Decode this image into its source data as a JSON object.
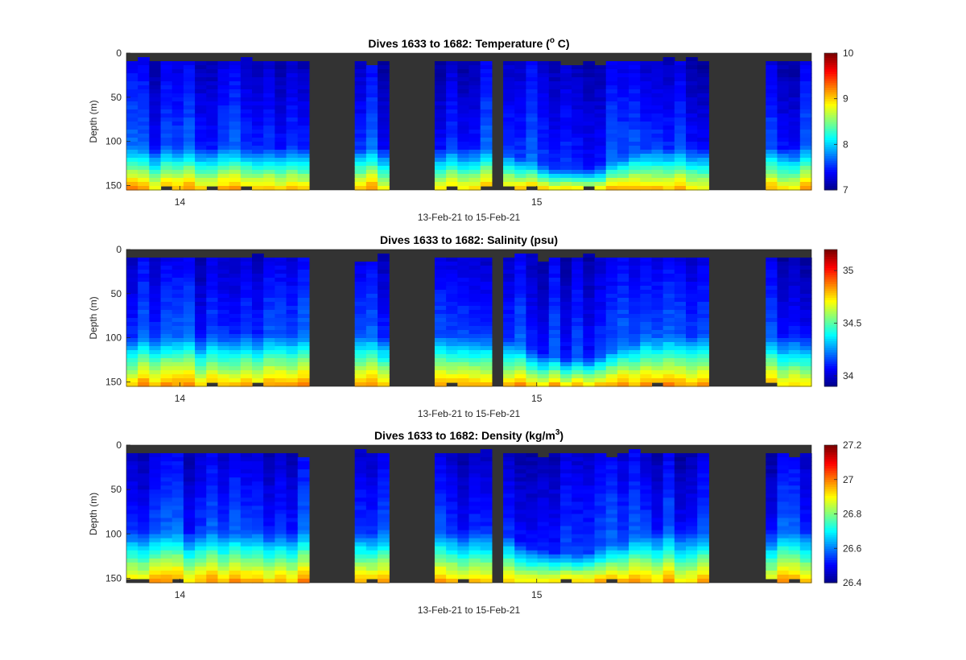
{
  "colormap": [
    "#00008f",
    "#0000ff",
    "#0080ff",
    "#00ffff",
    "#80ff80",
    "#ffff00",
    "#ff8000",
    "#ff0000",
    "#800000"
  ],
  "nodata_color": "#333333",
  "x_caption": "13-Feb-21 to 15-Feb-21",
  "chart_data": [
    {
      "type": "heatmap",
      "title_main": "Dives 1633 to 1682: Temperature (",
      "title_sup": "o",
      "title_end": " C)",
      "ylabel": "Depth (m)",
      "xlabel": "13-Feb-21 to 15-Feb-21",
      "x_ticks": [
        {
          "value": 14,
          "label": "14"
        },
        {
          "value": 15,
          "label": "15"
        }
      ],
      "xlim": [
        13.85,
        15.77
      ],
      "y_ticks": [
        "0",
        "50",
        "100",
        "150"
      ],
      "ylim": [
        0,
        155
      ],
      "y_reversed": true,
      "clim": [
        7,
        10
      ],
      "colorbar_ticks": [
        "7",
        "8",
        "9",
        "10"
      ],
      "surface_mean": 7.15,
      "thermocline_top_m": 105,
      "bottom_max": 8.9,
      "grid": false
    },
    {
      "type": "heatmap",
      "title_main": "Dives 1633 to 1682: Salinity (psu)",
      "title_sup": "",
      "title_end": "",
      "ylabel": "Depth (m)",
      "xlabel": "13-Feb-21 to 15-Feb-21",
      "x_ticks": [
        {
          "value": 14,
          "label": "14"
        },
        {
          "value": 15,
          "label": "15"
        }
      ],
      "xlim": [
        13.85,
        15.77
      ],
      "y_ticks": [
        "0",
        "50",
        "100",
        "150"
      ],
      "ylim": [
        0,
        155
      ],
      "y_reversed": true,
      "clim": [
        33.9,
        35.2
      ],
      "colorbar_ticks": [
        "34",
        "34.5",
        "35"
      ],
      "surface_mean": 33.99,
      "halocline_top_m": 95,
      "bottom_max": 34.8,
      "grid": false
    },
    {
      "type": "heatmap",
      "title_main": "Dives 1633 to 1682: Density (kg/m",
      "title_sup": "3",
      "title_end": ")",
      "ylabel": "Depth (m)",
      "xlabel": "13-Feb-21 to 15-Feb-21",
      "x_ticks": [
        {
          "value": 14,
          "label": "14"
        },
        {
          "value": 15,
          "label": "15"
        }
      ],
      "xlim": [
        13.85,
        15.77
      ],
      "y_ticks": [
        "0",
        "50",
        "100",
        "150"
      ],
      "ylim": [
        0,
        155
      ],
      "y_reversed": true,
      "clim": [
        26.4,
        27.2
      ],
      "colorbar_ticks": [
        "26.4",
        "26.6",
        "26.8",
        "27",
        "27.2"
      ],
      "surface_mean": 26.62,
      "pycnocline_top_m": 95,
      "bottom_max": 26.95,
      "grid": false
    }
  ],
  "dive_coverage": [
    {
      "start": 13.85,
      "end": 14.35
    },
    {
      "start": 14.5,
      "end": 14.58
    },
    {
      "start": 14.73,
      "end": 14.88
    },
    {
      "start": 14.9,
      "end": 15.48
    },
    {
      "start": 15.63,
      "end": 15.77
    }
  ]
}
